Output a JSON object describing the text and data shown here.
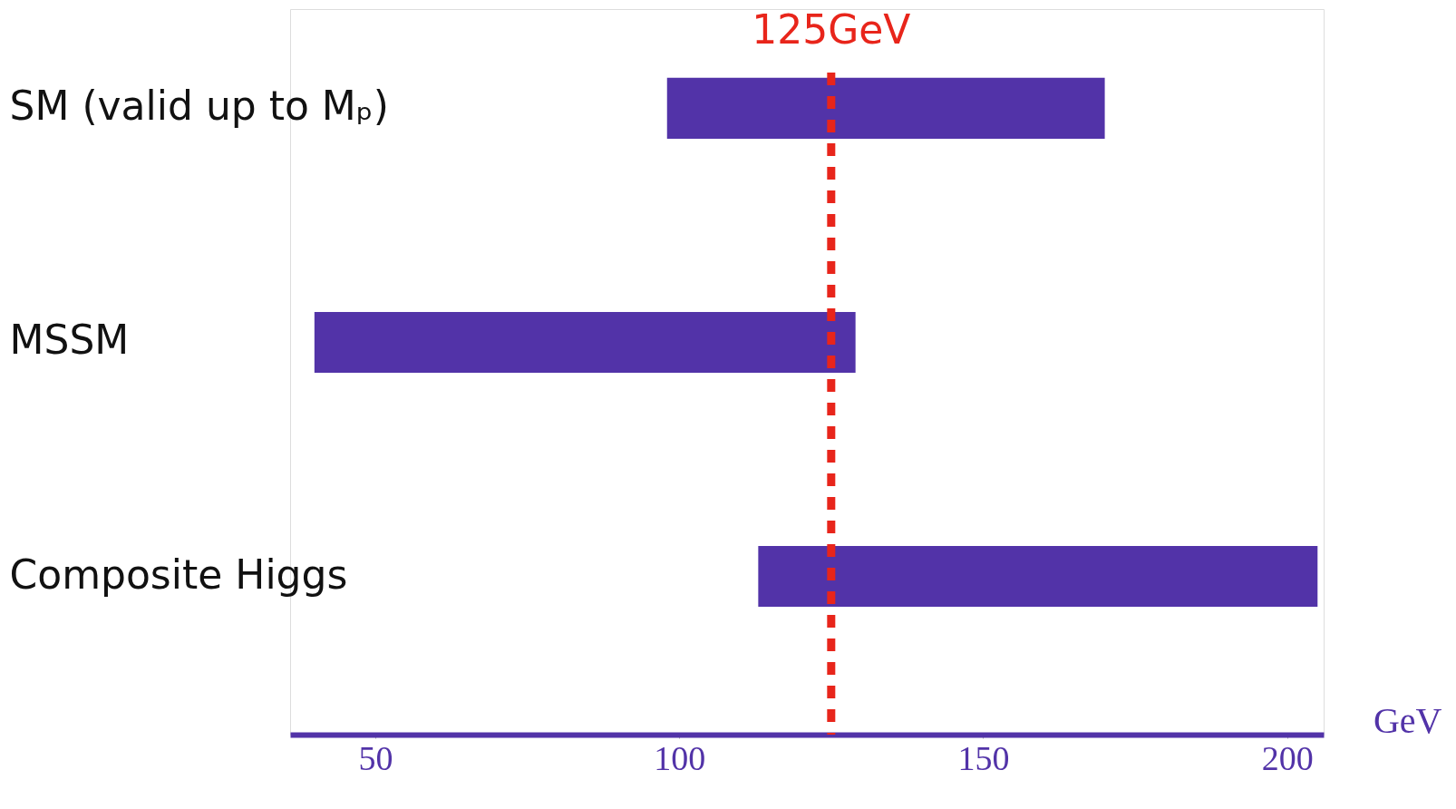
{
  "chart_data": {
    "type": "bar",
    "orientation": "horizontal",
    "categories": [
      "SM (valid up to Mₚ)",
      "MSSM",
      "Composite Higgs"
    ],
    "base": [
      98,
      40,
      113
    ],
    "values": [
      72,
      89,
      92
    ],
    "color": "#5233a8",
    "xlabel": "GeV",
    "xlim": [
      36,
      206
    ],
    "xticks": [
      50,
      100,
      150,
      200
    ],
    "grid": false,
    "ref_lines": [
      {
        "axis": "x",
        "value": 125,
        "label": "125GeV",
        "color": "#e8251b",
        "line_style": "dashed"
      }
    ]
  }
}
